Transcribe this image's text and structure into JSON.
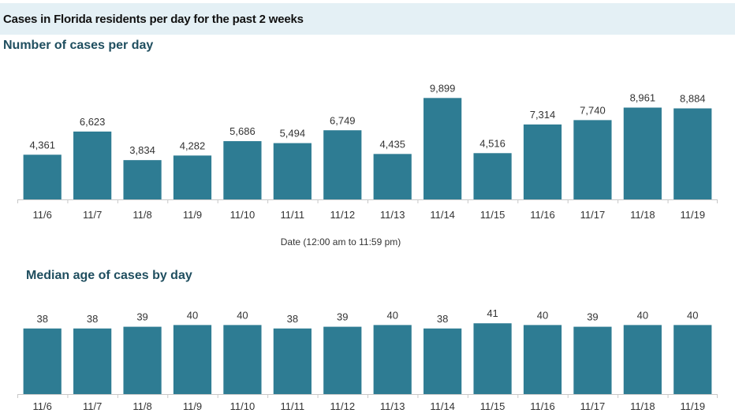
{
  "header": {
    "title": "Cases in Florida residents per day for the past 2 weeks"
  },
  "colors": {
    "bar": "#2e7c93",
    "header_bg": "#e4f0f5",
    "subtitle": "#1f4e5f"
  },
  "chart_data": [
    {
      "type": "bar",
      "title": "Number of cases per day",
      "xlabel": "Date (12:00 am to 11:59 pm)",
      "categories": [
        "11/6",
        "11/7",
        "11/8",
        "11/9",
        "11/10",
        "11/11",
        "11/12",
        "11/13",
        "11/14",
        "11/15",
        "11/16",
        "11/17",
        "11/18",
        "11/19"
      ],
      "values": [
        4361,
        6623,
        3834,
        4282,
        5686,
        5494,
        6749,
        4435,
        9899,
        4516,
        7314,
        7740,
        8961,
        8884
      ],
      "value_labels": [
        "4,361",
        "6,623",
        "3,834",
        "4,282",
        "5,686",
        "5,494",
        "6,749",
        "4,435",
        "9,899",
        "4,516",
        "7,314",
        "7,740",
        "8,961",
        "8,884"
      ],
      "ylim": [
        0,
        11000
      ],
      "grid": false
    },
    {
      "type": "bar",
      "title": "Median age of cases by day",
      "xlabel": "",
      "categories": [
        "11/6",
        "11/7",
        "11/8",
        "11/9",
        "11/10",
        "11/11",
        "11/12",
        "11/13",
        "11/14",
        "11/15",
        "11/16",
        "11/17",
        "11/18",
        "11/19"
      ],
      "values": [
        38,
        38,
        39,
        40,
        40,
        38,
        39,
        40,
        38,
        41,
        40,
        39,
        40,
        40
      ],
      "value_labels": [
        "38",
        "38",
        "39",
        "40",
        "40",
        "38",
        "39",
        "40",
        "38",
        "41",
        "40",
        "39",
        "40",
        "40"
      ],
      "ylim": [
        0,
        42
      ],
      "grid": false
    }
  ]
}
